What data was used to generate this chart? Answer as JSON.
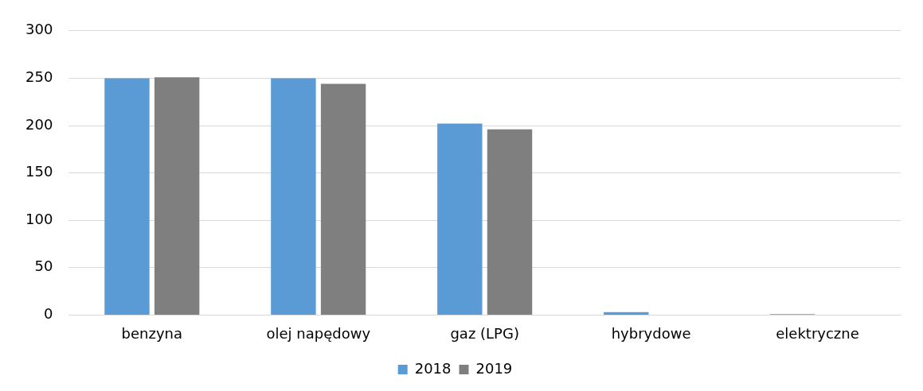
{
  "chart_data": {
    "type": "bar",
    "categories": [
      "benzyna",
      "olej napędowy",
      "gaz (LPG)",
      "hybrydowe",
      "elektryczne"
    ],
    "series": [
      {
        "name": "2018",
        "color": "#5b9bd5",
        "values": [
          250,
          250,
          202,
          3,
          1
        ]
      },
      {
        "name": "2019",
        "color": "#7f7f7f",
        "values": [
          251,
          244,
          196,
          0,
          0
        ]
      }
    ],
    "ylim": [
      0,
      300
    ],
    "yticks": [
      0,
      50,
      100,
      150,
      200,
      250,
      300
    ],
    "grid": "y",
    "legend": "bottom"
  }
}
